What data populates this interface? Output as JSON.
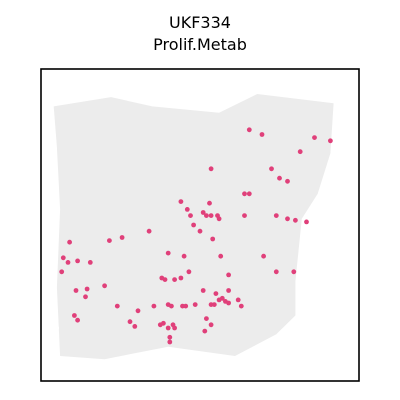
{
  "chart_data": {
    "type": "scatter",
    "title": [
      "UKF334",
      "Prolif.Metab"
    ],
    "xlabel": "",
    "ylabel": "",
    "grid": false,
    "xlim": [
      0,
      100
    ],
    "ylim": [
      0,
      100
    ],
    "colors": {
      "highlight": "#e0407a",
      "background_spots": "#ececec",
      "frame": "#000000"
    },
    "background_region": {
      "description": "tissue spots",
      "outline": [
        [
          4,
          88
        ],
        [
          22,
          91
        ],
        [
          35,
          88
        ],
        [
          56,
          86
        ],
        [
          68,
          92
        ],
        [
          92,
          89
        ],
        [
          91,
          73
        ],
        [
          87,
          60
        ],
        [
          82,
          52
        ],
        [
          80,
          32
        ],
        [
          80,
          21
        ],
        [
          74,
          15
        ],
        [
          61,
          8
        ],
        [
          40,
          11
        ],
        [
          20,
          7
        ],
        [
          6,
          8
        ],
        [
          5,
          30
        ],
        [
          6,
          55
        ],
        [
          5,
          75
        ]
      ],
      "holes": [
        [
          91,
          46
        ],
        [
          92,
          29
        ],
        [
          90,
          17
        ],
        [
          5,
          17
        ]
      ]
    },
    "series": [
      {
        "values": [
          [
            65.5,
            80.5
          ],
          [
            69.5,
            79.0
          ],
          [
            86.0,
            78.0
          ],
          [
            91.0,
            77.0
          ],
          [
            53.5,
            68.0
          ],
          [
            81.5,
            73.5
          ],
          [
            72.5,
            68.0
          ],
          [
            75.0,
            65.0
          ],
          [
            77.5,
            64.0
          ],
          [
            64.0,
            60.0
          ],
          [
            65.5,
            60.0
          ],
          [
            44.0,
            57.5
          ],
          [
            53.0,
            57.0
          ],
          [
            46.0,
            55.0
          ],
          [
            47.0,
            53.0
          ],
          [
            52.0,
            53.0
          ],
          [
            53.5,
            53.0
          ],
          [
            55.5,
            53.0
          ],
          [
            74.0,
            53.0
          ],
          [
            77.5,
            52.0
          ],
          [
            80.0,
            51.5
          ],
          [
            83.5,
            51.0
          ],
          [
            48.0,
            50.0
          ],
          [
            50.0,
            48.0
          ],
          [
            34.0,
            48.0
          ],
          [
            25.5,
            46.0
          ],
          [
            21.5,
            45.0
          ],
          [
            9.0,
            44.5
          ],
          [
            54.0,
            45.5
          ],
          [
            40.0,
            41.0
          ],
          [
            45.0,
            40.0
          ],
          [
            56.5,
            40.0
          ],
          [
            70.0,
            40.0
          ],
          [
            7.0,
            39.5
          ],
          [
            11.5,
            38.5
          ],
          [
            15.5,
            38.0
          ],
          [
            6.5,
            35.0
          ],
          [
            46.5,
            35.0
          ],
          [
            38.0,
            33.0
          ],
          [
            39.0,
            32.5
          ],
          [
            42.0,
            32.5
          ],
          [
            44.0,
            33.0
          ],
          [
            74.0,
            35.0
          ],
          [
            79.5,
            35.0
          ],
          [
            59.0,
            34.0
          ],
          [
            20.0,
            30.5
          ],
          [
            11.0,
            29.0
          ],
          [
            14.5,
            29.5
          ],
          [
            51.0,
            29.0
          ],
          [
            59.0,
            29.0
          ],
          [
            55.0,
            28.0
          ],
          [
            56.0,
            26.0
          ],
          [
            62.0,
            26.0
          ],
          [
            14.0,
            27.0
          ],
          [
            59.0,
            25.0
          ],
          [
            48.5,
            24.5
          ],
          [
            35.5,
            24.0
          ],
          [
            40.0,
            24.5
          ],
          [
            41.0,
            24.0
          ],
          [
            44.5,
            24.0
          ],
          [
            45.5,
            24.0
          ],
          [
            24.0,
            24.0
          ],
          [
            30.5,
            22.5
          ],
          [
            53.5,
            24.5
          ],
          [
            54.5,
            24.5
          ],
          [
            57.0,
            26.5
          ],
          [
            58.0,
            25.5
          ],
          [
            63.0,
            24.0
          ],
          [
            10.5,
            21.0
          ],
          [
            11.5,
            19.5
          ],
          [
            28.0,
            19.0
          ],
          [
            29.5,
            17.5
          ],
          [
            37.5,
            18.0
          ],
          [
            38.5,
            18.5
          ],
          [
            41.5,
            18.0
          ],
          [
            42.0,
            17.0
          ],
          [
            53.5,
            18.0
          ],
          [
            51.5,
            16.0
          ],
          [
            40.5,
            14.0
          ],
          [
            40.5,
            12.5
          ],
          [
            52.0,
            20.0
          ],
          [
            40.0,
            17.0
          ],
          [
            8.5,
            38.0
          ],
          [
            51.0,
            54.0
          ],
          [
            64.0,
            53.0
          ],
          [
            56.0,
            52.0
          ]
        ]
      }
    ]
  }
}
